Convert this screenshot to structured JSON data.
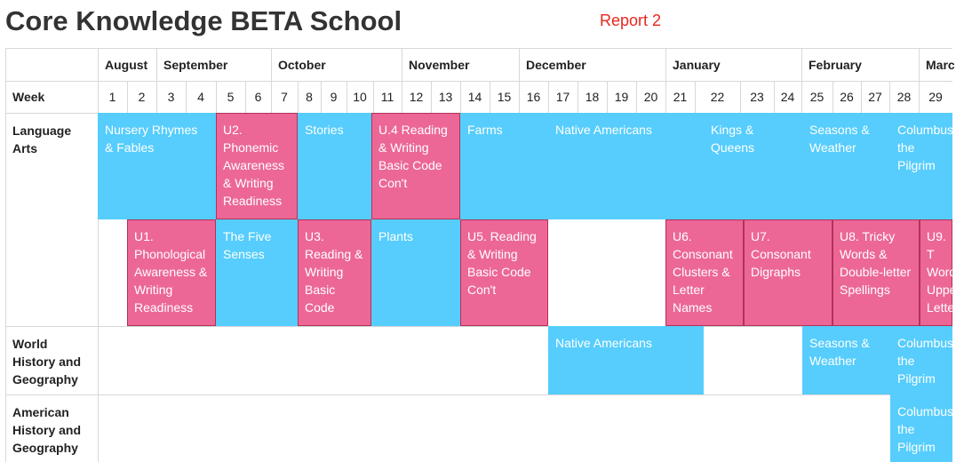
{
  "header": {
    "title": "Core Knowledge BETA School",
    "report_link": "Report 2"
  },
  "calendar": {
    "week_label": "Week",
    "months": [
      "August",
      "September",
      "October",
      "November",
      "December",
      "January",
      "February",
      "Marc"
    ],
    "weeks": [
      "1",
      "2",
      "3",
      "4",
      "5",
      "6",
      "7",
      "8",
      "9",
      "10",
      "11",
      "12",
      "13",
      "14",
      "15",
      "16",
      "17",
      "18",
      "19",
      "20",
      "21",
      "22",
      "23",
      "24",
      "25",
      "26",
      "27",
      "28",
      "29"
    ]
  },
  "subjects": [
    {
      "name": "Language Arts"
    },
    {
      "name": "World History and Geography"
    },
    {
      "name": "American History and Geography"
    }
  ],
  "blocks": [
    {
      "subject": "Language Arts",
      "kind": "topic",
      "text": "Nursery Rhymes & Fables"
    },
    {
      "subject": "Language Arts",
      "kind": "unit",
      "text": "U2. Phonemic Awareness & Writing Readiness"
    },
    {
      "subject": "Language Arts",
      "kind": "topic",
      "text": "Stories"
    },
    {
      "subject": "Language Arts",
      "kind": "unit",
      "text": "U.4 Reading & Writing Basic Code Con't"
    },
    {
      "subject": "Language Arts",
      "kind": "topic",
      "text": "Farms"
    },
    {
      "subject": "Language Arts",
      "kind": "topic",
      "text": "Native Americans"
    },
    {
      "subject": "Language Arts",
      "kind": "topic",
      "text": "Kings & Queens"
    },
    {
      "subject": "Language Arts",
      "kind": "topic",
      "text": "Seasons & Weather"
    },
    {
      "subject": "Language Arts",
      "kind": "topic",
      "text": "Columbus the Pilgrim"
    },
    {
      "subject": "Language Arts",
      "kind": "unit",
      "text": "U1. Phonological Awareness & Writing Readiness"
    },
    {
      "subject": "Language Arts",
      "kind": "topic",
      "text": "The Five Senses"
    },
    {
      "subject": "Language Arts",
      "kind": "unit",
      "text": "U3. Reading & Writing Basic Code"
    },
    {
      "subject": "Language Arts",
      "kind": "topic",
      "text": "Plants"
    },
    {
      "subject": "Language Arts",
      "kind": "unit",
      "text": "U5. Reading & Writing Basic Code Con't"
    },
    {
      "subject": "Language Arts",
      "kind": "unit",
      "text": "U6. Consonant Clusters & Letter Names"
    },
    {
      "subject": "Language Arts",
      "kind": "unit",
      "text": "U7. Consonant Digraphs"
    },
    {
      "subject": "Language Arts",
      "kind": "unit",
      "text": "U8. Tricky Words & Double-letter Spellings"
    },
    {
      "subject": "Language Arts",
      "kind": "unit",
      "text": "U9. T Word Uppe Lette"
    },
    {
      "subject": "World History and Geography",
      "kind": "topic",
      "text": "Native Americans"
    },
    {
      "subject": "World History and Geography",
      "kind": "topic",
      "text": "Seasons & Weather"
    },
    {
      "subject": "World History and Geography",
      "kind": "topic",
      "text": "Columbus the Pilgrim"
    },
    {
      "subject": "American History and Geography",
      "kind": "topic",
      "text": "Columbus the Pilgrim"
    }
  ],
  "colors": {
    "topic": "#56cdfc",
    "unit": "#ec6796",
    "unit_border": "#b23258",
    "report_link": "#e8261e"
  }
}
